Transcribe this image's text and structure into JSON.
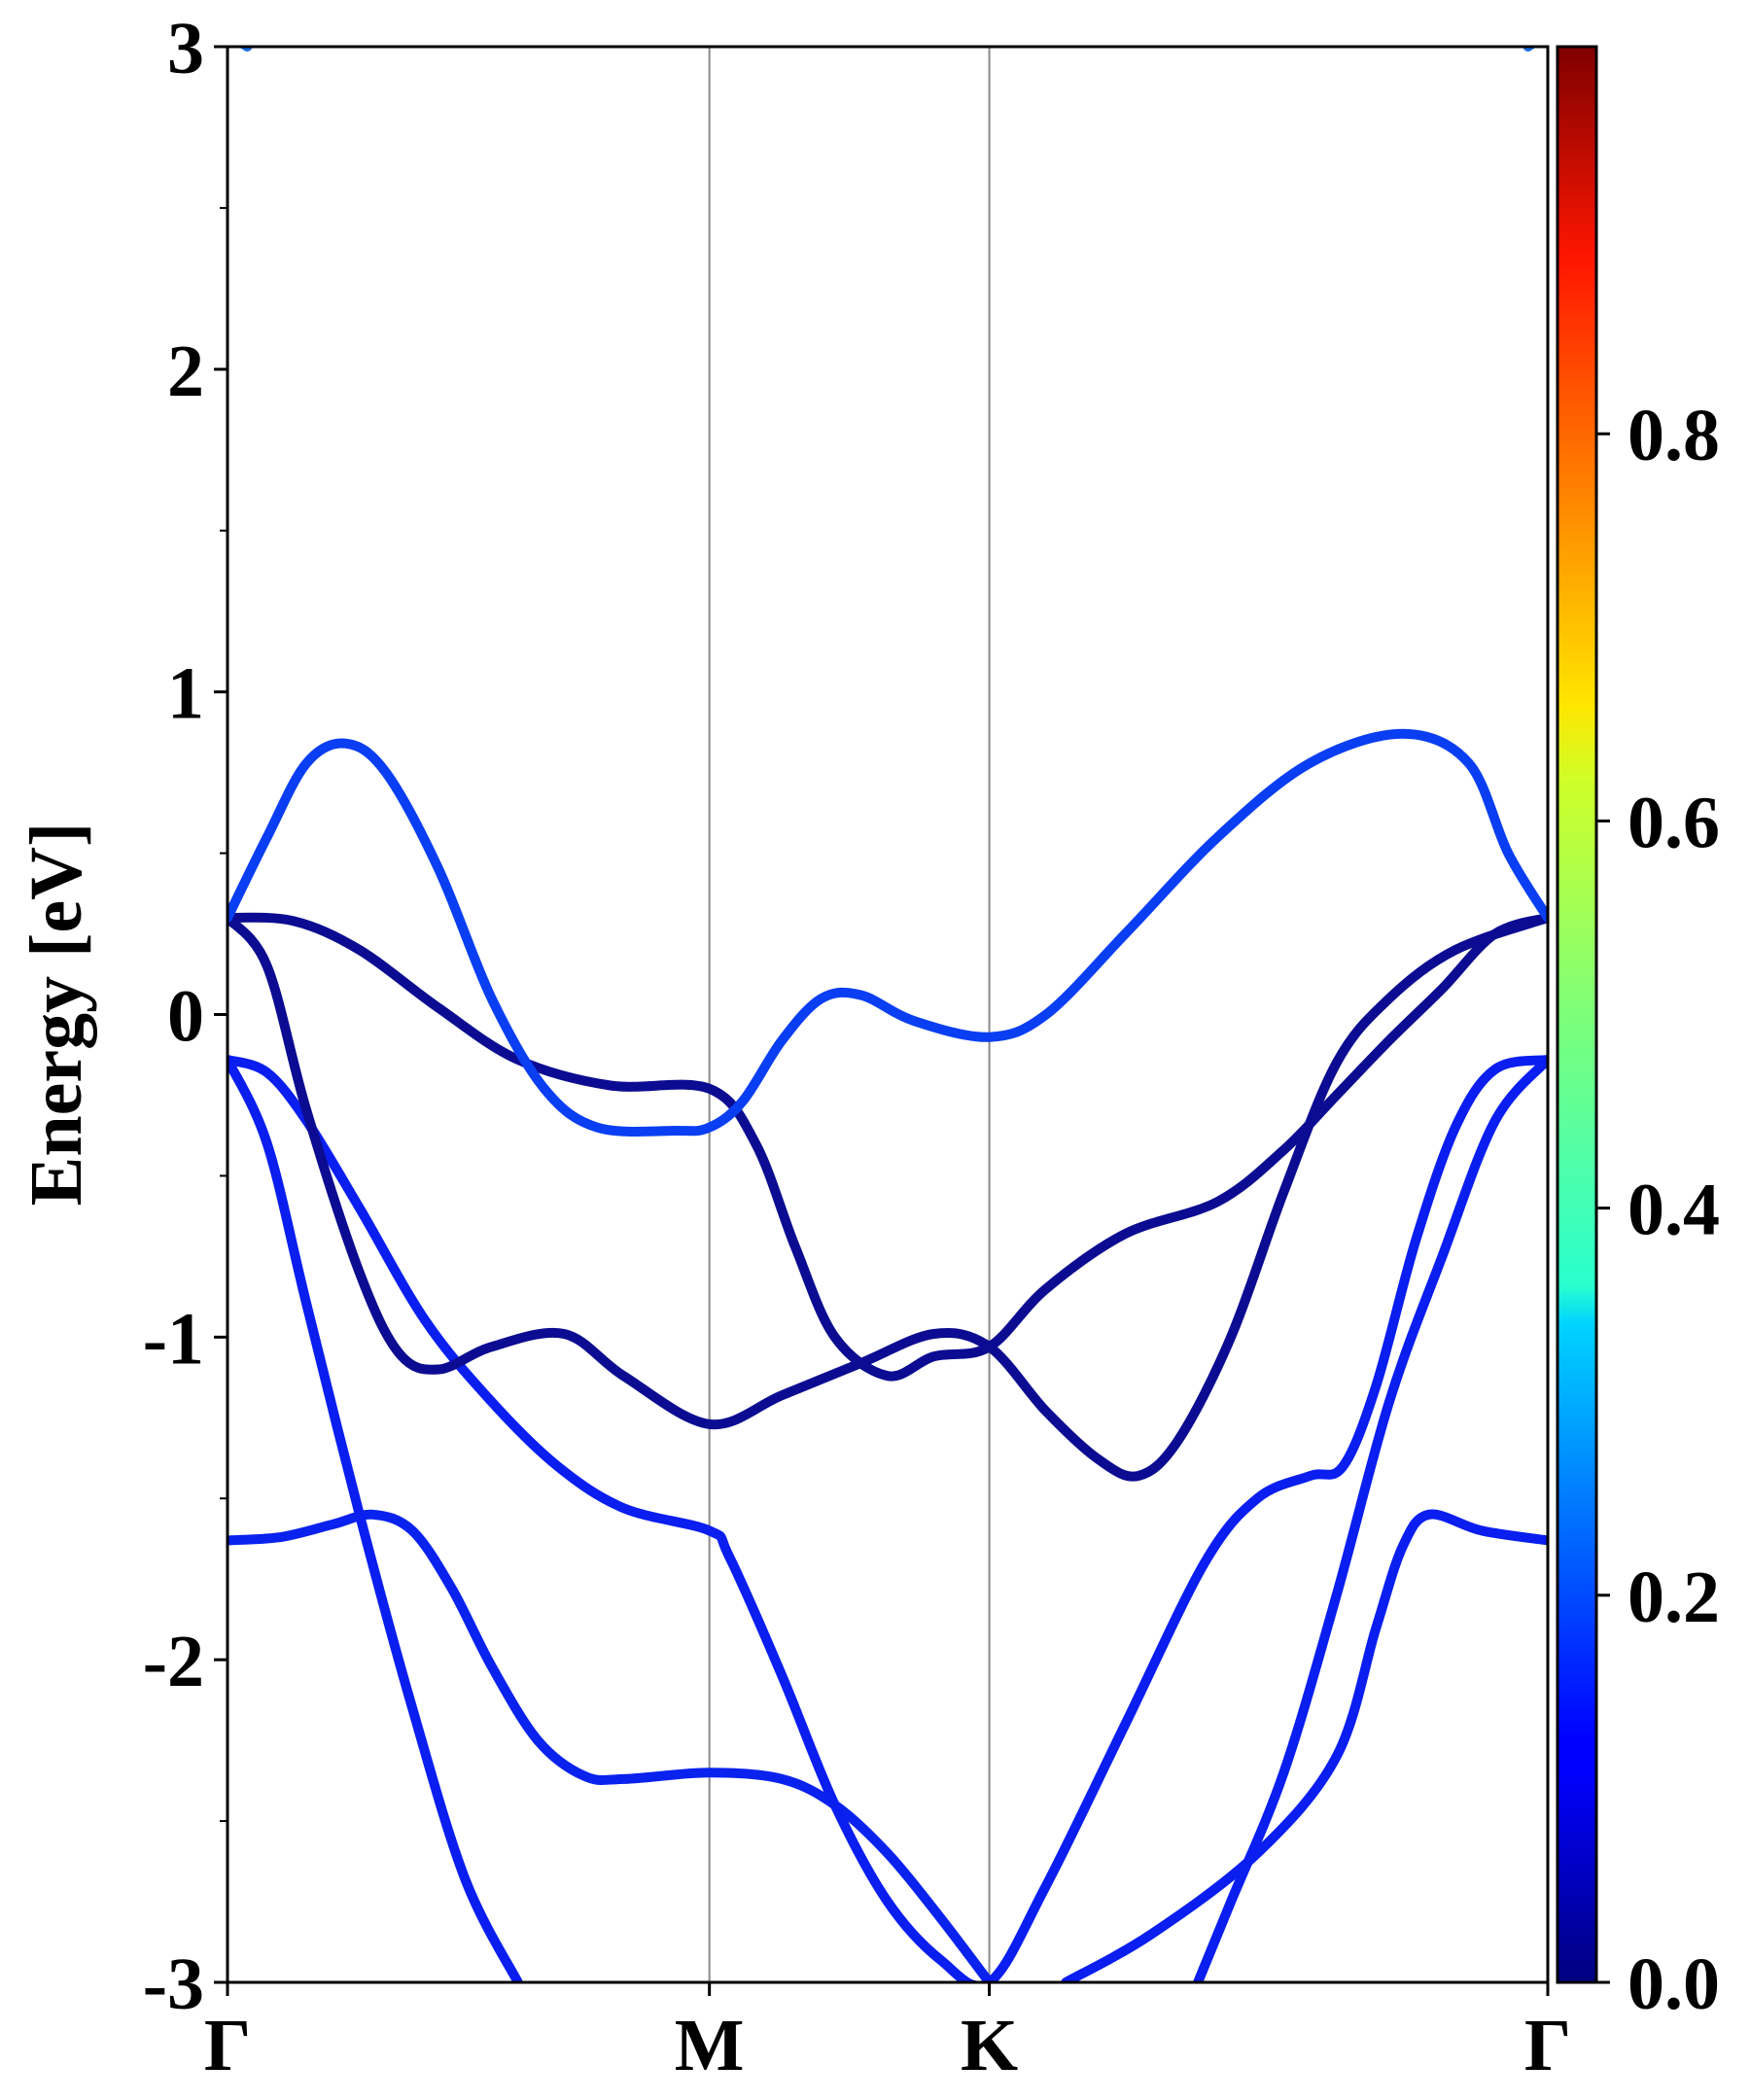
{
  "chart_data": {
    "type": "line",
    "title": "",
    "xlabel": "",
    "ylabel": "Energy [eV]",
    "ylim": [
      -3,
      3
    ],
    "xlim": [
      0,
      1
    ],
    "y_ticks": [
      {
        "value": -3,
        "label": "-3"
      },
      {
        "value": -2,
        "label": "-2"
      },
      {
        "value": -1,
        "label": "-1"
      },
      {
        "value": 0,
        "label": "0"
      },
      {
        "value": 1,
        "label": "1"
      },
      {
        "value": 2,
        "label": "2"
      },
      {
        "value": 3,
        "label": "3"
      }
    ],
    "y_minor_ticks": [
      -2.5,
      -1.5,
      -0.5,
      0.5,
      1.5,
      2.5
    ],
    "k_points": [
      {
        "label": "Γ",
        "x": 0
      },
      {
        "label": "M",
        "x": 0.365
      },
      {
        "label": "K",
        "x": 0.577
      },
      {
        "label": "Γ",
        "x": 1
      }
    ],
    "colorbar": {
      "min": 0.0,
      "max": 1.0,
      "colormap": "jet",
      "ticks": [
        {
          "value": 0.0,
          "label": "0.0"
        },
        {
          "value": 0.2,
          "label": "0.2"
        },
        {
          "value": 0.4,
          "label": "0.4"
        },
        {
          "value": 0.6,
          "label": "0.6"
        },
        {
          "value": 0.8,
          "label": "0.8"
        }
      ]
    },
    "series": [
      {
        "name": "band 1",
        "weight": 0.15,
        "color": "#0a22ee",
        "points": [
          [
            0,
            -1.63
          ],
          [
            0.04,
            -1.62
          ],
          [
            0.08,
            -1.58
          ],
          [
            0.11,
            -1.55
          ],
          [
            0.14,
            -1.6
          ],
          [
            0.17,
            -1.78
          ],
          [
            0.2,
            -2.02
          ],
          [
            0.235,
            -2.25
          ],
          [
            0.27,
            -2.36
          ],
          [
            0.3,
            -2.37
          ],
          [
            0.365,
            -2.35
          ],
          [
            0.42,
            -2.37
          ],
          [
            0.46,
            -2.45
          ],
          [
            0.5,
            -2.6
          ],
          [
            0.54,
            -2.8
          ],
          [
            0.577,
            -3.0
          ]
        ]
      },
      {
        "name": "band 2",
        "weight": 0.15,
        "color": "#0a1ef0",
        "points": [
          [
            0,
            -0.14
          ],
          [
            0.03,
            -0.18
          ],
          [
            0.06,
            -0.33
          ],
          [
            0.1,
            -0.6
          ],
          [
            0.15,
            -0.95
          ],
          [
            0.2,
            -1.2
          ],
          [
            0.25,
            -1.4
          ],
          [
            0.3,
            -1.53
          ],
          [
            0.365,
            -1.6
          ],
          [
            0.38,
            -1.68
          ],
          [
            0.42,
            -2.05
          ],
          [
            0.46,
            -2.45
          ],
          [
            0.5,
            -2.75
          ],
          [
            0.54,
            -2.93
          ],
          [
            0.577,
            -3.0
          ],
          [
            0.62,
            -2.7
          ],
          [
            0.68,
            -2.2
          ],
          [
            0.74,
            -1.7
          ],
          [
            0.78,
            -1.5
          ],
          [
            0.82,
            -1.43
          ],
          [
            0.845,
            -1.4
          ],
          [
            0.87,
            -1.15
          ],
          [
            0.9,
            -0.7
          ],
          [
            0.93,
            -0.35
          ],
          [
            0.96,
            -0.17
          ],
          [
            1,
            -0.14
          ]
        ]
      },
      {
        "name": "band 3",
        "weight": 0.15,
        "color": "#0a1ef0",
        "points": [
          [
            0,
            -0.14
          ],
          [
            0.03,
            -0.4
          ],
          [
            0.06,
            -0.9
          ],
          [
            0.1,
            -1.55
          ],
          [
            0.14,
            -2.15
          ],
          [
            0.18,
            -2.68
          ],
          [
            0.22,
            -3.0
          ]
        ]
      },
      {
        "name": "band 4",
        "weight": 0.15,
        "color": "#0a1ef0",
        "points": [
          [
            0.635,
            -3.0
          ],
          [
            0.7,
            -2.85
          ],
          [
            0.78,
            -2.6
          ],
          [
            0.84,
            -2.3
          ],
          [
            0.87,
            -1.9
          ],
          [
            0.89,
            -1.65
          ],
          [
            0.91,
            -1.55
          ],
          [
            0.95,
            -1.6
          ],
          [
            1,
            -1.63
          ]
        ]
      },
      {
        "name": "band 5",
        "weight": 0.15,
        "color": "#0a1ef0",
        "points": [
          [
            0.735,
            -3.0
          ],
          [
            0.76,
            -2.75
          ],
          [
            0.8,
            -2.35
          ],
          [
            0.84,
            -1.8
          ],
          [
            0.88,
            -1.2
          ],
          [
            0.92,
            -0.75
          ],
          [
            0.96,
            -0.33
          ],
          [
            1,
            -0.14
          ]
        ]
      },
      {
        "name": "band 6",
        "weight": 0.05,
        "color": "#0c0c92",
        "points": [
          [
            0,
            0.3
          ],
          [
            0.03,
            0.15
          ],
          [
            0.06,
            -0.3
          ],
          [
            0.1,
            -0.8
          ],
          [
            0.13,
            -1.05
          ],
          [
            0.16,
            -1.1
          ],
          [
            0.2,
            -1.03
          ],
          [
            0.255,
            -0.99
          ],
          [
            0.3,
            -1.12
          ],
          [
            0.365,
            -1.27
          ],
          [
            0.42,
            -1.18
          ],
          [
            0.48,
            -1.08
          ],
          [
            0.535,
            -0.99
          ],
          [
            0.577,
            -1.03
          ],
          [
            0.62,
            -1.23
          ],
          [
            0.66,
            -1.38
          ],
          [
            0.69,
            -1.43
          ],
          [
            0.72,
            -1.32
          ],
          [
            0.76,
            -1.0
          ],
          [
            0.8,
            -0.55
          ],
          [
            0.84,
            -0.15
          ],
          [
            0.88,
            0.05
          ],
          [
            0.93,
            0.2
          ],
          [
            1,
            0.3
          ]
        ]
      },
      {
        "name": "band 7",
        "weight": 0.05,
        "color": "#0c0c92",
        "points": [
          [
            0,
            0.3
          ],
          [
            0.05,
            0.29
          ],
          [
            0.1,
            0.2
          ],
          [
            0.16,
            0.02
          ],
          [
            0.22,
            -0.14
          ],
          [
            0.29,
            -0.22
          ],
          [
            0.365,
            -0.23
          ],
          [
            0.4,
            -0.4
          ],
          [
            0.43,
            -0.72
          ],
          [
            0.46,
            -1.0
          ],
          [
            0.5,
            -1.12
          ],
          [
            0.535,
            -1.06
          ],
          [
            0.577,
            -1.03
          ],
          [
            0.62,
            -0.85
          ],
          [
            0.68,
            -0.68
          ],
          [
            0.75,
            -0.58
          ],
          [
            0.8,
            -0.42
          ],
          [
            0.84,
            -0.25
          ],
          [
            0.88,
            -0.08
          ],
          [
            0.92,
            0.08
          ],
          [
            0.96,
            0.25
          ],
          [
            1,
            0.3
          ]
        ]
      },
      {
        "name": "band 8",
        "weight": 0.2,
        "color": "#0a3ef2",
        "points": [
          [
            0,
            0.3
          ],
          [
            0.03,
            0.55
          ],
          [
            0.06,
            0.78
          ],
          [
            0.09,
            0.84
          ],
          [
            0.12,
            0.75
          ],
          [
            0.16,
            0.45
          ],
          [
            0.2,
            0.05
          ],
          [
            0.24,
            -0.23
          ],
          [
            0.28,
            -0.35
          ],
          [
            0.34,
            -0.36
          ],
          [
            0.365,
            -0.35
          ],
          [
            0.39,
            -0.27
          ],
          [
            0.42,
            -0.08
          ],
          [
            0.45,
            0.05
          ],
          [
            0.48,
            0.06
          ],
          [
            0.52,
            -0.02
          ],
          [
            0.577,
            -0.07
          ],
          [
            0.62,
            0.0
          ],
          [
            0.68,
            0.25
          ],
          [
            0.75,
            0.55
          ],
          [
            0.82,
            0.78
          ],
          [
            0.89,
            0.87
          ],
          [
            0.94,
            0.78
          ],
          [
            0.97,
            0.5
          ],
          [
            1,
            0.3
          ]
        ]
      },
      {
        "name": "band 9",
        "weight": 0.25,
        "color": "#1a6ee8",
        "points": [
          [
            0,
            3.04
          ],
          [
            0.015,
            3.0
          ]
        ]
      },
      {
        "name": "band 10",
        "weight": 0.25,
        "color": "#1a6ee8",
        "points": [
          [
            0.985,
            3.0
          ],
          [
            1,
            3.04
          ]
        ]
      }
    ]
  }
}
